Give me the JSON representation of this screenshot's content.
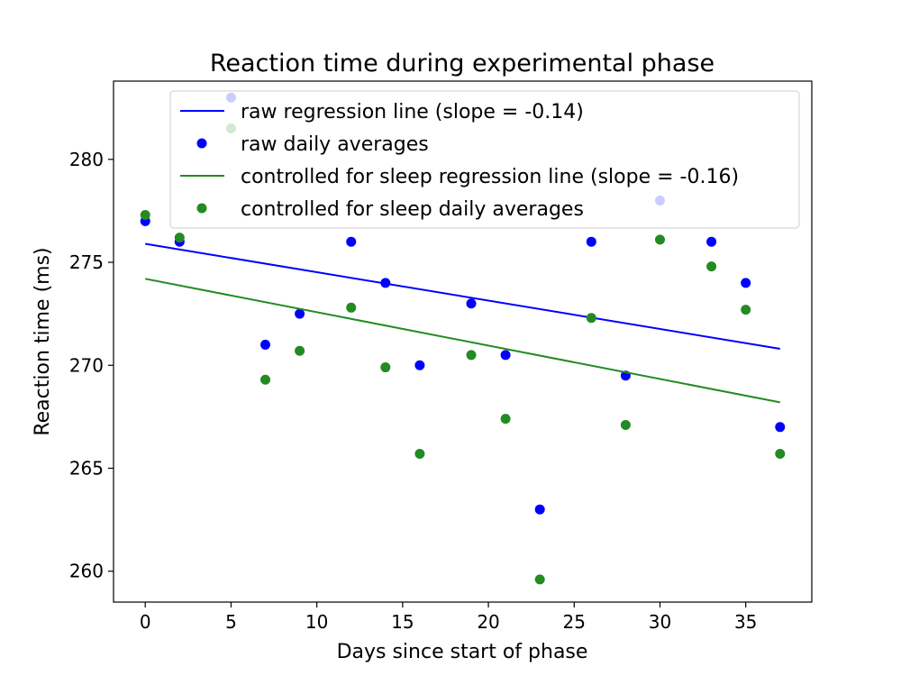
{
  "chart_data": {
    "type": "scatter",
    "title": "Reaction time during experimental phase",
    "xlabel": "Days since start of phase",
    "ylabel": "Reaction time (ms)",
    "xlim": [
      -1.85,
      38.85
    ],
    "ylim": [
      258.5,
      283.8
    ],
    "xticks": [
      0,
      5,
      10,
      15,
      20,
      25,
      30,
      35
    ],
    "yticks": [
      260,
      265,
      270,
      275,
      280
    ],
    "grid": false,
    "legend_position": "top-right",
    "series": [
      {
        "name": "raw regression line (slope = -0.14)",
        "kind": "line",
        "color": "#0000ff",
        "x": [
          0,
          37
        ],
        "y": [
          275.9,
          270.8
        ]
      },
      {
        "name": "raw daily averages",
        "kind": "scatter",
        "color": "#0000ff",
        "x": [
          0,
          2,
          5,
          7,
          9,
          12,
          14,
          16,
          19,
          21,
          23,
          26,
          28,
          30,
          33,
          35,
          37
        ],
        "y": [
          277.0,
          276.0,
          283.0,
          271.0,
          272.5,
          276.0,
          274.0,
          270.0,
          273.0,
          270.5,
          263.0,
          276.0,
          269.5,
          278.0,
          276.0,
          274.0,
          267.0
        ]
      },
      {
        "name": "controlled for sleep regression line (slope = -0.16)",
        "kind": "line",
        "color": "#228b22",
        "x": [
          0,
          37
        ],
        "y": [
          274.2,
          268.2
        ]
      },
      {
        "name": "controlled for sleep daily averages",
        "kind": "scatter",
        "color": "#228b22",
        "x": [
          0,
          2,
          5,
          7,
          9,
          12,
          14,
          16,
          19,
          21,
          23,
          26,
          28,
          30,
          33,
          35,
          37
        ],
        "y": [
          277.3,
          276.2,
          281.5,
          269.3,
          270.7,
          272.8,
          269.9,
          265.7,
          270.5,
          267.4,
          259.6,
          272.3,
          267.1,
          276.1,
          274.8,
          272.7,
          265.7
        ]
      }
    ]
  }
}
